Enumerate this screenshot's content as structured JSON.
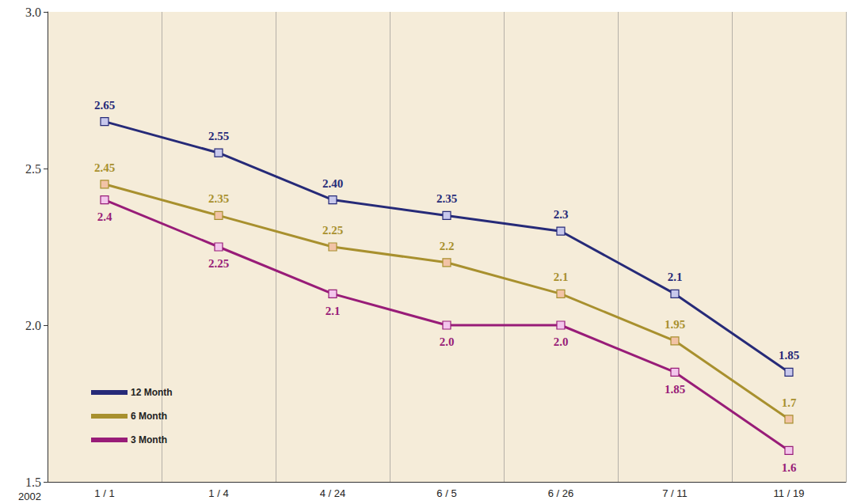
{
  "chart_data": {
    "type": "line",
    "xlabel": "2002",
    "categories": [
      "1 / 1",
      "1 / 4",
      "4 / 24",
      "6 / 5",
      "6 / 26",
      "7 / 11",
      "11 / 19"
    ],
    "series": [
      {
        "name": "12 Month",
        "color": "#262a78",
        "marker": "square",
        "values": [
          2.65,
          2.55,
          2.4,
          2.35,
          2.3,
          2.1,
          1.85
        ],
        "value_labels": [
          "2.65",
          "2.55",
          "2.40",
          "2.35",
          "2.3",
          "2.1",
          "1.85"
        ]
      },
      {
        "name": "6 Month",
        "color": "#a8902e",
        "marker": "square",
        "values": [
          2.45,
          2.35,
          2.25,
          2.2,
          2.1,
          1.95,
          1.7
        ]
      },
      {
        "name": "3 Month",
        "color": "#981c78",
        "marker": "square",
        "values": [
          2.4,
          2.25,
          2.1,
          2.0,
          2.0,
          1.85,
          1.6
        ],
        "value_labels": [
          "2.4",
          "2.25",
          "2.1",
          "2.0",
          "2.0",
          "1.85",
          "1.6"
        ]
      }
    ],
    "ylim": [
      1.5,
      3.0
    ],
    "yticks": [
      1.5,
      {
        "value": 2,
        "label": "2.0"
      },
      2.5,
      {
        "value": 3,
        "label": "3.0"
      }
    ],
    "grid": true,
    "legend": "lower left",
    "data_labels": true
  }
}
